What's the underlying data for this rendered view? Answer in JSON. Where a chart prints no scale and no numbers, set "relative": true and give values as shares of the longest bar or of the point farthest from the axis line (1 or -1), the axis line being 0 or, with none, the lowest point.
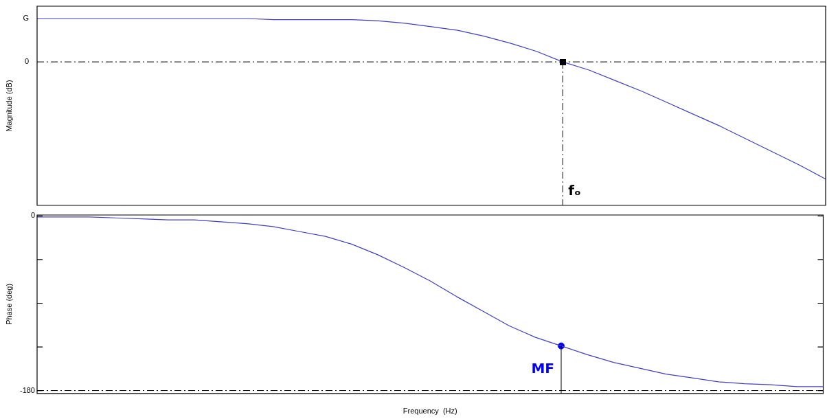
{
  "chart_data": [
    {
      "type": "line",
      "ylabel": "Magnitude (dB)",
      "relative": true,
      "tick_labels": false,
      "grid": false,
      "categories": [
        null,
        null,
        null,
        null,
        null,
        null,
        null,
        null,
        null,
        null,
        null,
        null,
        null,
        null,
        null,
        null,
        null,
        null,
        null,
        null,
        null,
        null,
        null,
        null,
        null,
        null,
        null,
        null,
        null,
        null,
        null
      ],
      "series": [
        {
          "color": "#3f3fbf",
          "values": [
            0.37,
            0.37,
            0.37,
            0.37,
            0.37,
            0.37,
            0.37,
            0.37,
            0.37,
            0.36,
            0.36,
            0.36,
            0.36,
            0.35,
            0.33,
            0.3,
            0.27,
            0.22,
            0.16,
            0.09,
            0,
            -0.07,
            -0.16,
            -0.25,
            -0.35,
            -0.45,
            -0.55,
            -0.66,
            -0.77,
            -0.88,
            -1
          ]
        }
      ],
      "ref_lines": [
        {
          "axis": "y",
          "value": 0,
          "label": "0",
          "line_style": "dashed",
          "color": "#000000"
        }
      ],
      "annotations": [
        "G",
        "fₒ"
      ]
    },
    {
      "type": "line",
      "ylabel": "Phase (deg)",
      "xlabel": "Frequency  (Hz)",
      "tick_labels": "y",
      "grid": false,
      "categories": [
        null,
        null,
        null,
        null,
        null,
        null,
        null,
        null,
        null,
        null,
        null,
        null,
        null,
        null,
        null,
        null,
        null,
        null,
        null,
        null,
        null,
        null,
        null,
        null,
        null,
        null,
        null,
        null,
        null,
        null,
        null
      ],
      "ylim": [
        -183,
        1
      ],
      "yticks": [
        0,
        {
          "value": -45,
          "label": null
        },
        {
          "value": -90,
          "label": null
        },
        {
          "value": -135,
          "label": null
        },
        -180
      ],
      "series": [
        {
          "color": "#3f3fbf",
          "values": [
            -1,
            -1,
            -1,
            -2,
            -3,
            -4,
            -4,
            -6,
            -8,
            -11,
            -16,
            -21,
            -29,
            -40,
            -53,
            -67,
            -83,
            -98,
            -113,
            -125,
            -134,
            -143,
            -151,
            -157,
            -163,
            -167,
            -171,
            -173,
            -174,
            -176,
            -176
          ]
        },
        {
          "type": "scatter",
          "color": "#0000ff",
          "marker": "circle",
          "line_style": "solid",
          "values": [
            null,
            null,
            null,
            null,
            null,
            null,
            null,
            null,
            null,
            null,
            null,
            null,
            null,
            null,
            null,
            null,
            null,
            null,
            null,
            null,
            -134,
            null,
            null,
            null,
            null,
            null,
            null,
            null,
            null,
            null,
            null
          ]
        }
      ],
      "ref_lines": [
        {
          "axis": "y",
          "value": -180,
          "line_style": "dashed",
          "color": "#000000"
        }
      ],
      "annotations": [
        "MF"
      ]
    }
  ]
}
